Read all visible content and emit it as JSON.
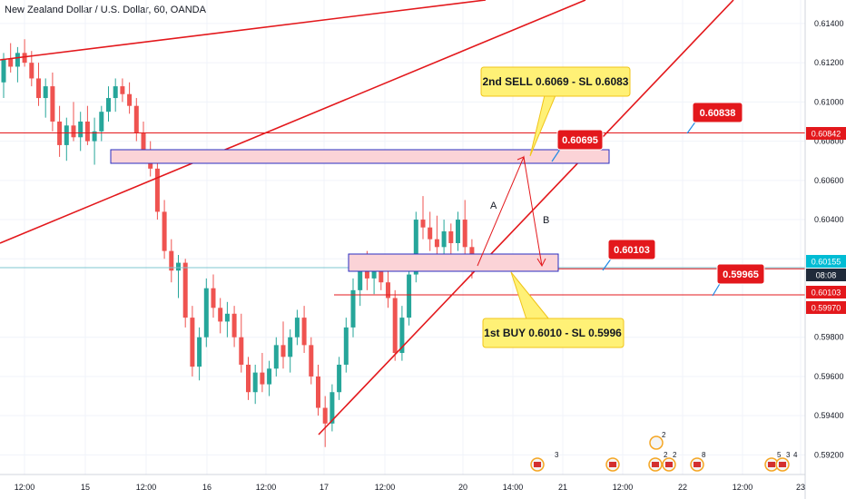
{
  "header": {
    "title": "New Zealand Dollar / U.S. Dollar, 60, OANDA"
  },
  "colors": {
    "up": "#26a69a",
    "down": "#ef5350",
    "trend": "#e3181c",
    "zone_fill": "#fbd3d7",
    "zone_stroke": "#2a2ec2",
    "callout_fill": "#fff176",
    "callout_text": "#131722",
    "tag_fill": "#e3181c",
    "tag_text": "#ffffff",
    "cyan": "#00bcd4"
  },
  "chart_data": {
    "type": "candlestick",
    "title": "New Zealand Dollar / U.S. Dollar, 60, OANDA",
    "ylim": [
      0.591,
      0.6152
    ],
    "y_ticks": [
      "0.61400",
      "0.61200",
      "0.61000",
      "0.60800",
      "0.60600",
      "0.60400",
      "0.60200",
      "0.59800",
      "0.59600",
      "0.59400",
      "0.59200"
    ],
    "x_ticks": [
      "12:00",
      "15",
      "12:00",
      "16",
      "12:00",
      "17",
      "12:00",
      "20",
      "14:00",
      "21",
      "12:00",
      "22",
      "12:00",
      "23"
    ],
    "price_tags": [
      {
        "label": "0.60842",
        "style": "red"
      },
      {
        "label": "0.60155",
        "style": "cyan"
      },
      {
        "label": "08:08",
        "style": "dark"
      },
      {
        "label": "0.60103",
        "style": "red"
      },
      {
        "label": "0.59970",
        "style": "red"
      }
    ],
    "labels": [
      {
        "text": "0.60838"
      },
      {
        "text": "0.60695"
      },
      {
        "text": "0.60103"
      },
      {
        "text": "0.59965"
      }
    ],
    "callouts": [
      {
        "text": "2nd SELL 0.6069 - SL 0.6083"
      },
      {
        "text": "1st BUY 0.6010 - SL 0.5996"
      }
    ],
    "wave_labels": [
      "A",
      "B"
    ],
    "horizontal_lines": [
      0.60842,
      0.60155,
      0.60103,
      0.5997
    ],
    "zones": [
      {
        "y_top": 0.6075,
        "y_bottom": 0.6068
      },
      {
        "y_top": 0.6019,
        "y_bottom": 0.6012
      }
    ],
    "event_markers": [
      "3",
      "2",
      "2",
      "2",
      "8",
      "5",
      "3",
      "4"
    ],
    "candles": [
      [
        0.611,
        0.6125,
        0.6102,
        0.6122
      ],
      [
        0.6122,
        0.613,
        0.6115,
        0.6118
      ],
      [
        0.6118,
        0.6128,
        0.611,
        0.6125
      ],
      [
        0.6125,
        0.6132,
        0.6118,
        0.612
      ],
      [
        0.612,
        0.6126,
        0.6108,
        0.6112
      ],
      [
        0.6112,
        0.612,
        0.6098,
        0.6102
      ],
      [
        0.6102,
        0.6112,
        0.6092,
        0.6108
      ],
      [
        0.6108,
        0.6115,
        0.6085,
        0.609
      ],
      [
        0.609,
        0.6098,
        0.6072,
        0.6078
      ],
      [
        0.6078,
        0.6092,
        0.607,
        0.6088
      ],
      [
        0.6088,
        0.61,
        0.608,
        0.6082
      ],
      [
        0.6082,
        0.6095,
        0.6075,
        0.609
      ],
      [
        0.609,
        0.6098,
        0.6078,
        0.608
      ],
      [
        0.608,
        0.6092,
        0.6068,
        0.6085
      ],
      [
        0.6085,
        0.6098,
        0.608,
        0.6095
      ],
      [
        0.6095,
        0.6108,
        0.609,
        0.6102
      ],
      [
        0.6102,
        0.6112,
        0.6095,
        0.6108
      ],
      [
        0.6108,
        0.6112,
        0.61,
        0.6104
      ],
      [
        0.6104,
        0.611,
        0.6094,
        0.6098
      ],
      [
        0.6098,
        0.6102,
        0.608,
        0.6084
      ],
      [
        0.6084,
        0.609,
        0.607,
        0.6074
      ],
      [
        0.6074,
        0.608,
        0.6062,
        0.6066
      ],
      [
        0.6066,
        0.607,
        0.604,
        0.6044
      ],
      [
        0.6044,
        0.605,
        0.602,
        0.6024
      ],
      [
        0.6024,
        0.603,
        0.6008,
        0.6014
      ],
      [
        0.6014,
        0.6022,
        0.6,
        0.6018
      ],
      [
        0.6018,
        0.602,
        0.5985,
        0.599
      ],
      [
        0.599,
        0.5996,
        0.596,
        0.5965
      ],
      [
        0.5965,
        0.5985,
        0.5958,
        0.598
      ],
      [
        0.598,
        0.601,
        0.5975,
        0.6005
      ],
      [
        0.6005,
        0.6012,
        0.599,
        0.5995
      ],
      [
        0.5995,
        0.6,
        0.5982,
        0.5988
      ],
      [
        0.5988,
        0.5998,
        0.598,
        0.5992
      ],
      [
        0.5992,
        0.5996,
        0.5975,
        0.598
      ],
      [
        0.598,
        0.5992,
        0.5962,
        0.5966
      ],
      [
        0.5966,
        0.597,
        0.5948,
        0.5952
      ],
      [
        0.5952,
        0.5966,
        0.5946,
        0.5962
      ],
      [
        0.5962,
        0.5972,
        0.5952,
        0.5956
      ],
      [
        0.5956,
        0.5968,
        0.595,
        0.5964
      ],
      [
        0.5964,
        0.598,
        0.596,
        0.5976
      ],
      [
        0.5976,
        0.5988,
        0.5964,
        0.597
      ],
      [
        0.597,
        0.5984,
        0.5962,
        0.598
      ],
      [
        0.598,
        0.5994,
        0.5976,
        0.599
      ],
      [
        0.599,
        0.5996,
        0.5972,
        0.5976
      ],
      [
        0.5976,
        0.598,
        0.5956,
        0.596
      ],
      [
        0.596,
        0.5966,
        0.594,
        0.5944
      ],
      [
        0.5944,
        0.595,
        0.5924,
        0.5936
      ],
      [
        0.5936,
        0.5956,
        0.5932,
        0.5952
      ],
      [
        0.5952,
        0.597,
        0.5948,
        0.5966
      ],
      [
        0.5966,
        0.599,
        0.5962,
        0.5985
      ],
      [
        0.5985,
        0.601,
        0.598,
        0.6004
      ],
      [
        0.6004,
        0.602,
        0.5996,
        0.6016
      ],
      [
        0.6016,
        0.6024,
        0.6004,
        0.601
      ],
      [
        0.601,
        0.6022,
        0.6002,
        0.6018
      ],
      [
        0.6018,
        0.6022,
        0.6004,
        0.6008
      ],
      [
        0.6008,
        0.6016,
        0.5995,
        0.6
      ],
      [
        0.6,
        0.6004,
        0.5968,
        0.5972
      ],
      [
        0.5972,
        0.5996,
        0.5968,
        0.599
      ],
      [
        0.599,
        0.6016,
        0.5986,
        0.6012
      ],
      [
        0.6012,
        0.6044,
        0.6008,
        0.604
      ],
      [
        0.604,
        0.6052,
        0.603,
        0.6036
      ],
      [
        0.6036,
        0.6044,
        0.6024,
        0.603
      ],
      [
        0.603,
        0.6042,
        0.602,
        0.6026
      ],
      [
        0.6026,
        0.604,
        0.6022,
        0.6034
      ],
      [
        0.6034,
        0.6038,
        0.602,
        0.6028
      ],
      [
        0.6028,
        0.6044,
        0.6024,
        0.604
      ],
      [
        0.604,
        0.605,
        0.6022,
        0.6026
      ],
      [
        0.6026,
        0.603,
        0.601,
        0.6014
      ]
    ]
  }
}
